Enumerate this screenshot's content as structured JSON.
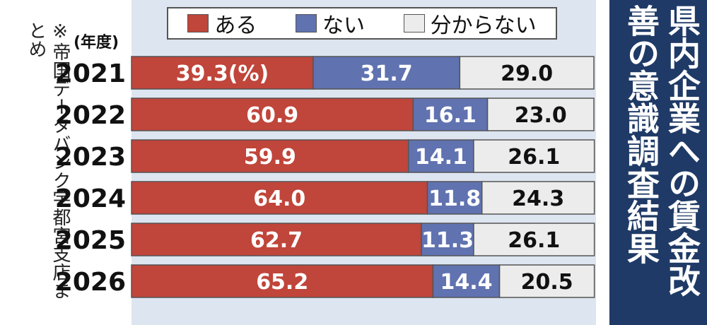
{
  "title": "県内企業への賃金改善の意識調査結果",
  "source_note": "※帝国データバンク宇都宮支店まとめ",
  "unit_label": "(年度)",
  "legend": [
    {
      "label": "ある",
      "color": "#c0453a"
    },
    {
      "label": "ない",
      "color": "#6072b0"
    },
    {
      "label": "分からない",
      "color": "#ececec"
    }
  ],
  "chart_data": {
    "type": "bar",
    "orientation": "horizontal",
    "stacked": true,
    "categories": [
      "2021",
      "2022",
      "2023",
      "2024",
      "2025",
      "2026"
    ],
    "series": [
      {
        "name": "ある",
        "values": [
          39.3,
          60.9,
          59.9,
          64.0,
          62.7,
          65.2
        ],
        "color": "#c0453a"
      },
      {
        "name": "ない",
        "values": [
          31.7,
          16.1,
          14.1,
          11.8,
          11.3,
          14.4
        ],
        "color": "#6072b0"
      },
      {
        "name": "分からない",
        "values": [
          29.0,
          23.0,
          26.1,
          24.3,
          26.1,
          20.5
        ],
        "color": "#ececec"
      }
    ],
    "value_labels": [
      [
        "39.3(%)",
        "31.7",
        "29.0"
      ],
      [
        "60.9",
        "16.1",
        "23.0"
      ],
      [
        "59.9",
        "14.1",
        "26.1"
      ],
      [
        "64.0",
        "11.8",
        "24.3"
      ],
      [
        "62.7",
        "11.3",
        "26.1"
      ],
      [
        "65.2",
        "14.4",
        "20.5"
      ]
    ],
    "xlim": [
      0,
      100
    ]
  }
}
